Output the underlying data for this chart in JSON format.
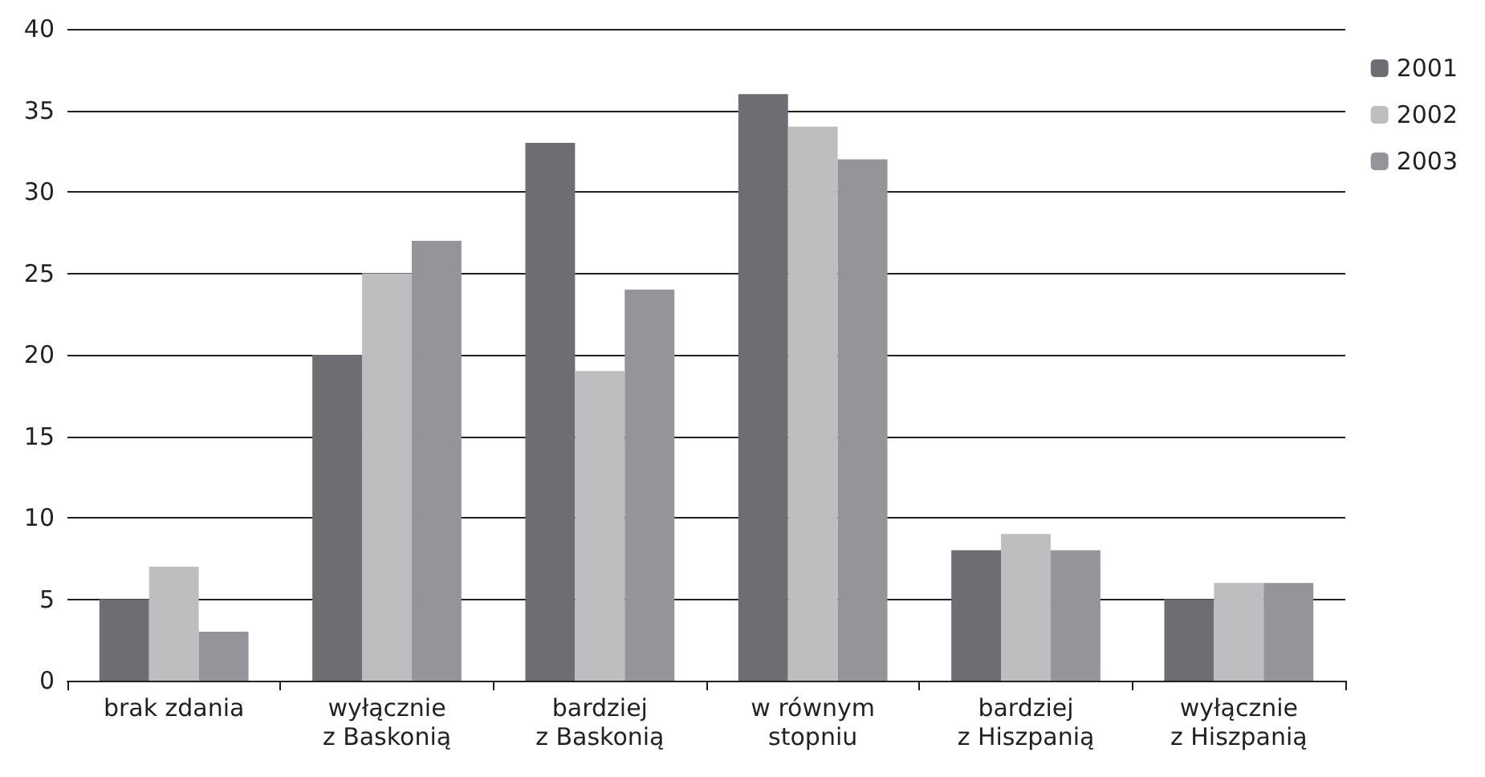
{
  "chart_data": {
    "type": "bar",
    "categories": [
      "brak zdania",
      "wyłącznie\nz Baskonią",
      "bardziej\nz Baskonią",
      "w równym\nstopniu",
      "bardziej\nz Hiszpanią",
      "wyłącznie\nz Hiszpanią"
    ],
    "series": [
      {
        "name": "2001",
        "color": "#6d6e71",
        "values": [
          5,
          20,
          33,
          36,
          8,
          5
        ]
      },
      {
        "name": "2002",
        "color": "#bcbec0",
        "values": [
          7,
          25,
          19,
          34,
          9,
          6
        ]
      },
      {
        "name": "2003",
        "color": "#939598",
        "values": [
          3,
          27,
          24,
          32,
          8,
          6
        ]
      }
    ],
    "ylim": [
      0,
      40
    ],
    "yticks": [
      0,
      5,
      10,
      15,
      20,
      25,
      30,
      35,
      40
    ],
    "grid": "y",
    "legend": "top right"
  }
}
